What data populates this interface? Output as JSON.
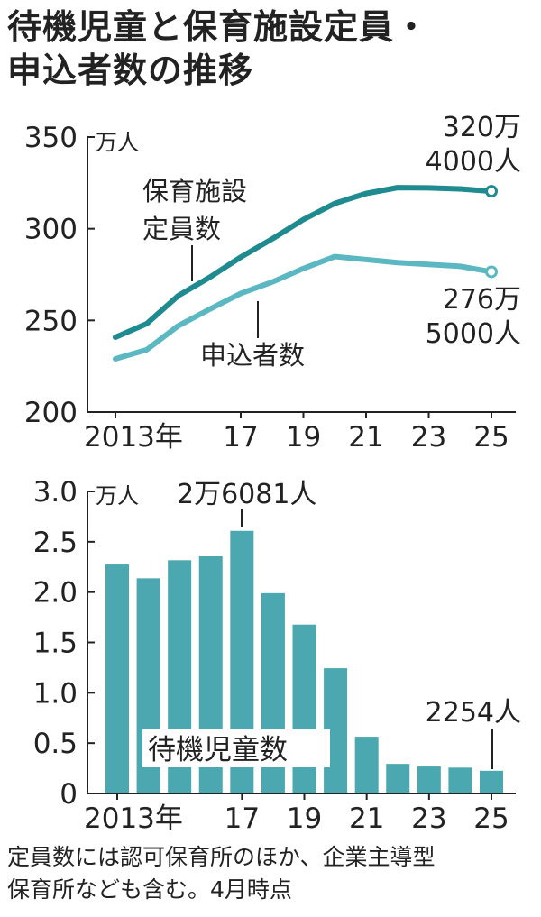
{
  "title": {
    "line1": "待機児童と保育施設定員・",
    "line2": "申込者数の推移"
  },
  "footnote": {
    "line1": "定員数には認可保育所のほか、企業主導型",
    "line2": "保育所なども含む。4月時点"
  },
  "colors": {
    "capacity_line": "#1f8b91",
    "applicants_line": "#5bb8c2",
    "bar_fill": "#4ba7b0",
    "axis": "#222222"
  },
  "chart_data": [
    {
      "type": "line",
      "unit": "万人",
      "ylim": [
        200,
        350
      ],
      "yticks": [
        200,
        250,
        300,
        350
      ],
      "x": [
        2013,
        2014,
        2015,
        2016,
        2017,
        2018,
        2019,
        2020,
        2021,
        2022,
        2023,
        2024,
        2025
      ],
      "x_tick_labels": [
        {
          "x": 2013,
          "label": "2013年"
        },
        {
          "x": 2017,
          "label": "17"
        },
        {
          "x": 2019,
          "label": "19"
        },
        {
          "x": 2021,
          "label": "21"
        },
        {
          "x": 2023,
          "label": "23"
        },
        {
          "x": 2025,
          "label": "25"
        }
      ],
      "series": [
        {
          "name_line1": "保育施設",
          "name_line2": "定員数",
          "values": [
            240.8,
            248.2,
            263.4,
            273.4,
            284.5,
            294.4,
            305.0,
            313.8,
            319.2,
            322.4,
            322.3,
            321.7,
            320.4
          ],
          "end_label_line1": "320万",
          "end_label_line2": "4000人"
        },
        {
          "name_line1": "申込者数",
          "values": [
            229.0,
            234.0,
            247.0,
            256.0,
            264.7,
            270.9,
            278.3,
            284.8,
            283.2,
            281.5,
            280.5,
            279.5,
            276.5
          ],
          "end_label_line1": "276万",
          "end_label_line2": "5000人"
        }
      ]
    },
    {
      "type": "bar",
      "unit": "万人",
      "ylim": [
        0,
        3.0
      ],
      "yticks": [
        "0",
        "0.5",
        "1.0",
        "1.5",
        "2.0",
        "2.5",
        "3.0"
      ],
      "categories": [
        2013,
        2014,
        2015,
        2016,
        2017,
        2018,
        2019,
        2020,
        2021,
        2022,
        2023,
        2024,
        2025
      ],
      "x_tick_labels": [
        {
          "x": 2013,
          "label": "2013年"
        },
        {
          "x": 2017,
          "label": "17"
        },
        {
          "x": 2019,
          "label": "19"
        },
        {
          "x": 2021,
          "label": "21"
        },
        {
          "x": 2023,
          "label": "23"
        },
        {
          "x": 2025,
          "label": "25"
        }
      ],
      "series": [
        {
          "name": "待機児童数",
          "values": [
            2.2741,
            2.1371,
            2.3167,
            2.3553,
            2.6081,
            1.9895,
            1.6772,
            1.2439,
            0.5634,
            0.2944,
            0.268,
            0.2567,
            0.2254
          ]
        }
      ],
      "annotations": [
        {
          "x": 2017,
          "label": "2万6081人"
        },
        {
          "x": 2025,
          "label": "2254人"
        }
      ]
    }
  ]
}
